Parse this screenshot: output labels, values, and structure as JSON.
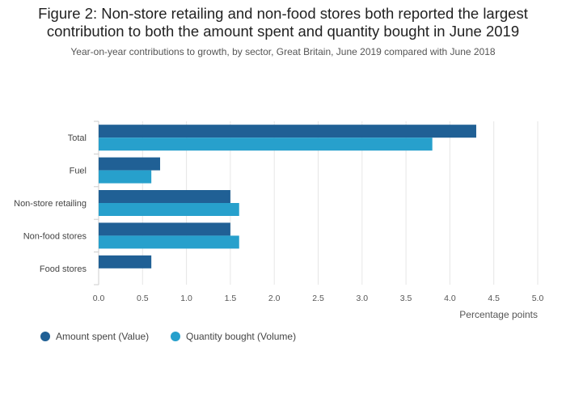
{
  "chart_data": {
    "type": "bar",
    "orientation": "horizontal",
    "title_lines": [
      "Figure 2: Non-store retailing and non-food stores both reported the largest",
      "contribution to both the amount spent and quantity bought in June 2019"
    ],
    "subtitle": "Year-on-year contributions to growth, by sector, Great Britain, June 2019 compared with June 2018",
    "categories": [
      "Total",
      "Fuel",
      "Non-store retailing",
      "Non-food stores",
      "Food stores"
    ],
    "series": [
      {
        "name": "Amount spent (Value)",
        "values": [
          4.3,
          0.7,
          1.5,
          1.5,
          0.6
        ]
      },
      {
        "name": "Quantity bought (Volume)",
        "values": [
          3.8,
          0.6,
          1.6,
          1.6,
          0.0
        ]
      }
    ],
    "xlabel": "Percentage points",
    "ylabel": "",
    "xlim": [
      0,
      5
    ],
    "xticks": [
      "0.0",
      "0.5",
      "1.0",
      "1.5",
      "2.0",
      "2.5",
      "3.0",
      "3.5",
      "4.0",
      "4.5",
      "5.0"
    ],
    "grid": true,
    "legend_position": "bottom-left",
    "colors": {
      "value": "#206095",
      "volume": "#27a0cc",
      "grid": "#e6e6e6",
      "axis": "#cccccc"
    }
  }
}
